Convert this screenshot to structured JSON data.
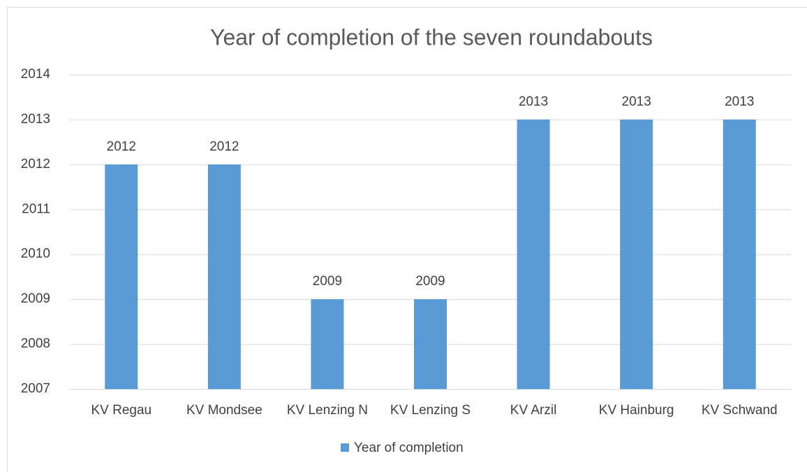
{
  "chart_data": {
    "type": "bar",
    "title": "Year of completion of the seven roundabouts",
    "categories": [
      "KV Regau",
      "KV Mondsee",
      "KV Lenzing N",
      "KV Lenzing S",
      "KV Arzil",
      "KV Hainburg",
      "KV Schwand"
    ],
    "series": [
      {
        "name": "Year of completion",
        "color": "#5b9bd5",
        "values": [
          2012,
          2012,
          2009,
          2009,
          2013,
          2013,
          2013
        ]
      }
    ],
    "ylim": [
      2007,
      2014
    ],
    "yticks": [
      2007,
      2008,
      2009,
      2010,
      2011,
      2012,
      2013,
      2014
    ],
    "grid": true,
    "legend": "bottom"
  }
}
